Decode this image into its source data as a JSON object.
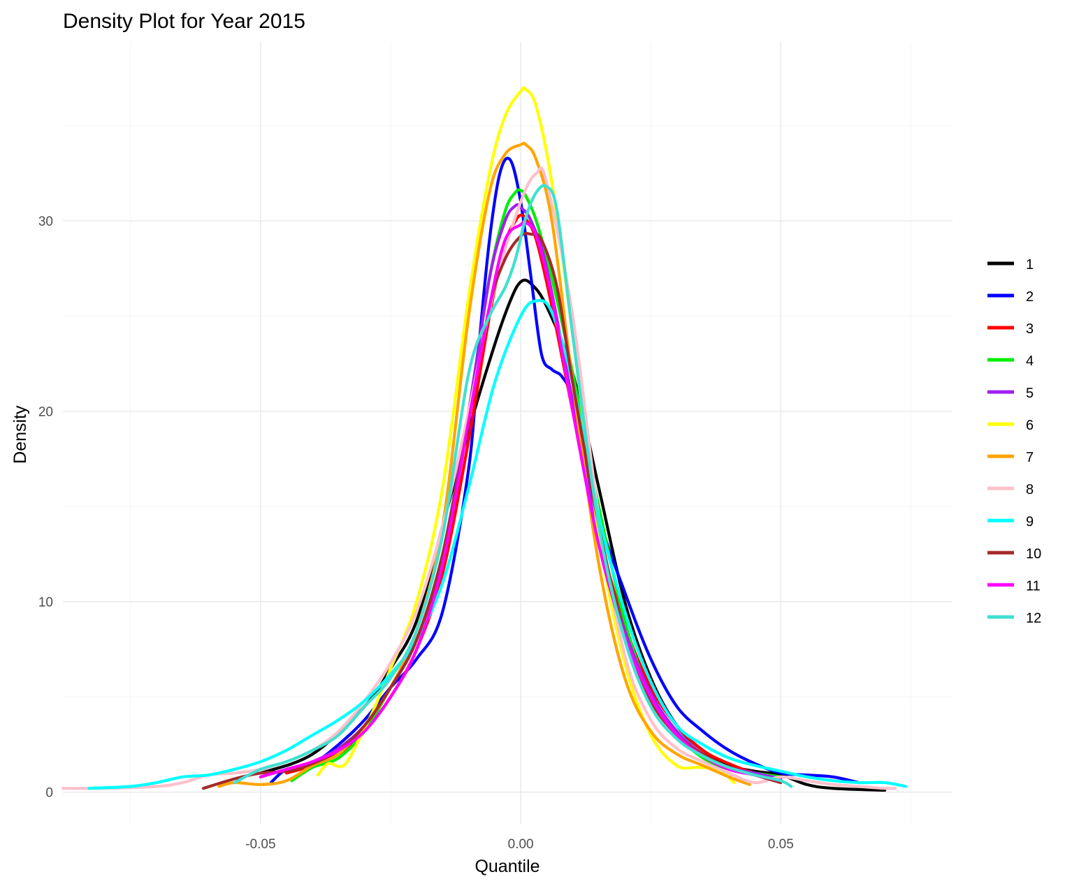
{
  "chart_data": {
    "type": "line",
    "title": "Density Plot for Year 2015",
    "xlabel": "Quantile",
    "ylabel": "Density",
    "xlim": [
      -0.088,
      0.083
    ],
    "ylim": [
      -1.7,
      39.4
    ],
    "x_ticks": [
      -0.05,
      0.0,
      0.05
    ],
    "x_tick_labels": [
      "-0.05",
      "0.00",
      "0.05"
    ],
    "y_ticks": [
      0,
      10,
      20,
      30
    ],
    "y_tick_labels": [
      "0",
      "10",
      "20",
      "30"
    ],
    "grid": true,
    "legend_position": "right",
    "series": [
      {
        "name": "1",
        "color": "#000000",
        "x": [
          -0.05,
          -0.04,
          -0.03,
          -0.025,
          -0.02,
          -0.015,
          -0.01,
          -0.005,
          -0.002,
          0.0,
          0.002,
          0.005,
          0.01,
          0.015,
          0.02,
          0.025,
          0.03,
          0.035,
          0.04,
          0.045,
          0.05,
          0.055,
          0.06,
          0.07
        ],
        "y": [
          1.0,
          2.0,
          4.5,
          6.5,
          9.0,
          14.0,
          19.0,
          23.5,
          25.8,
          26.8,
          26.7,
          25.5,
          22.0,
          16.0,
          10.0,
          6.0,
          3.5,
          2.2,
          1.4,
          1.1,
          0.9,
          0.4,
          0.2,
          0.1
        ]
      },
      {
        "name": "2",
        "color": "#0000ff",
        "x": [
          -0.048,
          -0.045,
          -0.04,
          -0.035,
          -0.03,
          -0.025,
          -0.02,
          -0.015,
          -0.01,
          -0.008,
          -0.006,
          -0.004,
          -0.002,
          0.0,
          0.002,
          0.004,
          0.006,
          0.008,
          0.01,
          0.015,
          0.02,
          0.025,
          0.03,
          0.035,
          0.04,
          0.045,
          0.05,
          0.055,
          0.06,
          0.065
        ],
        "y": [
          0.5,
          1.2,
          1.5,
          2.5,
          3.8,
          5.5,
          7.0,
          9.5,
          17.0,
          23.5,
          29.0,
          32.5,
          33.2,
          31.0,
          27.0,
          23.0,
          22.2,
          21.8,
          20.5,
          14.5,
          10.5,
          7.0,
          4.5,
          3.2,
          2.2,
          1.5,
          1.0,
          0.9,
          0.8,
          0.5
        ]
      },
      {
        "name": "3",
        "color": "#ff0000",
        "x": [
          -0.045,
          -0.04,
          -0.035,
          -0.03,
          -0.025,
          -0.02,
          -0.015,
          -0.01,
          -0.006,
          -0.003,
          -0.001,
          0.0,
          0.001,
          0.003,
          0.006,
          0.01,
          0.015,
          0.02,
          0.025,
          0.03,
          0.035,
          0.04,
          0.045,
          0.05
        ],
        "y": [
          1.0,
          1.4,
          2.0,
          3.2,
          5.0,
          7.5,
          11.5,
          18.5,
          25.0,
          28.8,
          30.0,
          30.3,
          30.1,
          29.0,
          25.5,
          20.0,
          13.5,
          8.8,
          5.5,
          3.5,
          2.2,
          1.5,
          1.0,
          0.8
        ]
      },
      {
        "name": "4",
        "color": "#00ee00",
        "x": [
          -0.044,
          -0.04,
          -0.035,
          -0.03,
          -0.025,
          -0.02,
          -0.015,
          -0.01,
          -0.006,
          -0.003,
          -0.001,
          0.0,
          0.001,
          0.003,
          0.006,
          0.01,
          0.015,
          0.02,
          0.025,
          0.03,
          0.035,
          0.04,
          0.045,
          0.05
        ],
        "y": [
          0.6,
          1.3,
          1.8,
          3.2,
          5.5,
          8.0,
          12.5,
          20.0,
          27.0,
          30.5,
          31.5,
          31.6,
          31.3,
          30.0,
          27.0,
          22.0,
          15.0,
          9.0,
          5.0,
          3.0,
          1.8,
          1.2,
          1.0,
          0.8
        ]
      },
      {
        "name": "5",
        "color": "#a020f0",
        "x": [
          -0.05,
          -0.045,
          -0.04,
          -0.035,
          -0.03,
          -0.025,
          -0.02,
          -0.015,
          -0.01,
          -0.006,
          -0.003,
          -0.001,
          0.0,
          0.002,
          0.005,
          0.01,
          0.015,
          0.02,
          0.025,
          0.03,
          0.035,
          0.04,
          0.045,
          0.05
        ],
        "y": [
          0.8,
          1.2,
          1.6,
          2.3,
          3.5,
          5.5,
          8.0,
          12.5,
          20.0,
          27.0,
          30.0,
          30.8,
          30.7,
          30.0,
          27.5,
          20.5,
          13.5,
          8.5,
          5.2,
          3.2,
          2.0,
          1.3,
          1.0,
          0.7
        ]
      },
      {
        "name": "6",
        "color": "#ffff00",
        "x": [
          -0.039,
          -0.037,
          -0.034,
          -0.031,
          -0.028,
          -0.025,
          -0.02,
          -0.015,
          -0.01,
          -0.006,
          -0.003,
          0.0,
          0.001,
          0.003,
          0.006,
          0.01,
          0.015,
          0.02,
          0.025,
          0.03,
          0.034,
          0.038,
          0.041
        ],
        "y": [
          0.9,
          1.5,
          1.4,
          2.8,
          4.5,
          6.5,
          10.0,
          16.0,
          26.0,
          32.5,
          35.5,
          36.8,
          36.9,
          36.0,
          32.0,
          24.0,
          13.5,
          6.8,
          3.0,
          1.4,
          1.3,
          1.2,
          0.5
        ]
      },
      {
        "name": "7",
        "color": "#ffa500",
        "x": [
          -0.058,
          -0.055,
          -0.05,
          -0.045,
          -0.04,
          -0.035,
          -0.03,
          -0.025,
          -0.02,
          -0.015,
          -0.01,
          -0.006,
          -0.003,
          0.0,
          0.001,
          0.003,
          0.006,
          0.01,
          0.015,
          0.02,
          0.025,
          0.03,
          0.035,
          0.04,
          0.044
        ],
        "y": [
          0.3,
          0.5,
          0.4,
          0.6,
          1.4,
          2.0,
          3.5,
          5.5,
          8.5,
          14.0,
          25.0,
          31.5,
          33.5,
          34.0,
          34.0,
          33.2,
          30.0,
          21.5,
          12.0,
          6.0,
          3.2,
          2.0,
          1.4,
          0.8,
          0.4
        ]
      },
      {
        "name": "8",
        "color": "#ffc0cb",
        "x": [
          -0.088,
          -0.08,
          -0.07,
          -0.065,
          -0.06,
          -0.055,
          -0.05,
          -0.045,
          -0.04,
          -0.035,
          -0.03,
          -0.025,
          -0.02,
          -0.015,
          -0.01,
          -0.005,
          0.0,
          0.003,
          0.005,
          0.01,
          0.015,
          0.02,
          0.025,
          0.03,
          0.035,
          0.04,
          0.045,
          0.05,
          0.055,
          0.06,
          0.065,
          0.07,
          0.072
        ],
        "y": [
          0.2,
          0.2,
          0.3,
          0.5,
          0.9,
          1.0,
          1.2,
          1.6,
          2.2,
          3.2,
          4.8,
          6.8,
          9.5,
          14.0,
          20.0,
          26.5,
          31.0,
          32.5,
          32.0,
          25.0,
          14.5,
          7.2,
          3.8,
          2.3,
          1.6,
          1.0,
          0.5,
          0.8,
          0.6,
          0.4,
          0.3,
          0.2,
          0.2
        ]
      },
      {
        "name": "9",
        "color": "#00ffff",
        "x": [
          -0.083,
          -0.075,
          -0.07,
          -0.065,
          -0.06,
          -0.055,
          -0.05,
          -0.045,
          -0.04,
          -0.035,
          -0.03,
          -0.025,
          -0.02,
          -0.015,
          -0.01,
          -0.005,
          0.0,
          0.003,
          0.006,
          0.01,
          0.015,
          0.02,
          0.025,
          0.03,
          0.035,
          0.04,
          0.045,
          0.05,
          0.055,
          0.06,
          0.065,
          0.07,
          0.074
        ],
        "y": [
          0.2,
          0.3,
          0.5,
          0.8,
          0.9,
          1.2,
          1.6,
          2.2,
          3.0,
          3.8,
          4.8,
          6.2,
          8.0,
          11.0,
          16.0,
          21.5,
          25.0,
          25.8,
          25.2,
          21.5,
          14.5,
          9.5,
          5.8,
          3.5,
          2.5,
          1.8,
          1.4,
          1.1,
          0.8,
          0.6,
          0.5,
          0.5,
          0.3
        ]
      },
      {
        "name": "10",
        "color": "#a52a2a",
        "x": [
          -0.061,
          -0.055,
          -0.05,
          -0.045,
          -0.04,
          -0.035,
          -0.03,
          -0.025,
          -0.02,
          -0.015,
          -0.01,
          -0.006,
          -0.003,
          0.0,
          0.002,
          0.004,
          0.007,
          0.01,
          0.015,
          0.02,
          0.025,
          0.03,
          0.035,
          0.04,
          0.045,
          0.05
        ],
        "y": [
          0.2,
          0.7,
          1.0,
          1.1,
          1.5,
          2.2,
          3.5,
          5.5,
          8.0,
          12.5,
          19.5,
          25.5,
          28.0,
          29.2,
          29.3,
          29.0,
          26.5,
          21.5,
          14.0,
          8.2,
          4.8,
          3.0,
          2.0,
          1.3,
          0.9,
          0.5
        ]
      },
      {
        "name": "11",
        "color": "#ff00ff",
        "x": [
          -0.05,
          -0.045,
          -0.04,
          -0.035,
          -0.03,
          -0.025,
          -0.02,
          -0.015,
          -0.01,
          -0.006,
          -0.003,
          0.0,
          0.001,
          0.003,
          0.006,
          0.01,
          0.015,
          0.02,
          0.025,
          0.03,
          0.035,
          0.04,
          0.045,
          0.05
        ],
        "y": [
          0.8,
          1.2,
          1.6,
          2.2,
          3.2,
          5.0,
          7.5,
          12.0,
          19.5,
          25.5,
          29.0,
          29.8,
          29.9,
          29.2,
          26.0,
          20.0,
          13.0,
          8.2,
          5.0,
          3.0,
          1.9,
          1.2,
          0.9,
          0.6
        ]
      },
      {
        "name": "12",
        "color": "#40e0d0",
        "x": [
          -0.055,
          -0.05,
          -0.045,
          -0.04,
          -0.035,
          -0.03,
          -0.025,
          -0.02,
          -0.015,
          -0.01,
          -0.006,
          -0.003,
          -0.001,
          0.001,
          0.003,
          0.005,
          0.007,
          0.01,
          0.015,
          0.02,
          0.025,
          0.03,
          0.035,
          0.04,
          0.045,
          0.05,
          0.052
        ],
        "y": [
          0.5,
          1.2,
          1.6,
          2.2,
          3.0,
          4.5,
          6.0,
          8.5,
          13.5,
          22.0,
          25.0,
          26.5,
          28.0,
          30.2,
          31.5,
          31.8,
          30.5,
          24.0,
          14.0,
          8.0,
          4.5,
          2.8,
          1.9,
          1.3,
          0.9,
          0.6,
          0.3
        ]
      }
    ]
  }
}
